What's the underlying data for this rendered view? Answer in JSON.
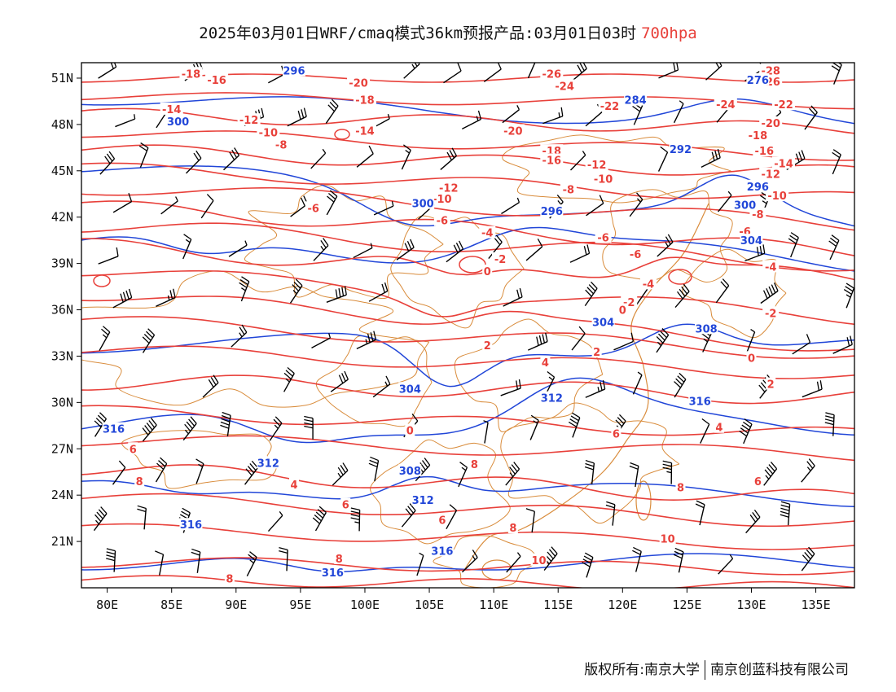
{
  "title": {
    "main": "2025年03月01日WRF/cmaq模式36km预报产品:03月01日03时",
    "level": "700hpa"
  },
  "footer": {
    "left": "版权所有:南京大学",
    "right": "南京创蓝科技有限公司"
  },
  "colors": {
    "temperature": "#e8403a",
    "height": "#2146d8",
    "boundary": "#d98c3c",
    "wind": "#000000"
  },
  "axes": {
    "lon_range": [
      78,
      138
    ],
    "lat_range": [
      18,
      52
    ],
    "lon_ticks": [
      {
        "v": 80,
        "label": "80E"
      },
      {
        "v": 85,
        "label": "85E"
      },
      {
        "v": 90,
        "label": "90E"
      },
      {
        "v": 95,
        "label": "95E"
      },
      {
        "v": 100,
        "label": "100E"
      },
      {
        "v": 105,
        "label": "105E"
      },
      {
        "v": 110,
        "label": "110E"
      },
      {
        "v": 115,
        "label": "115E"
      },
      {
        "v": 120,
        "label": "120E"
      },
      {
        "v": 125,
        "label": "125E"
      },
      {
        "v": 130,
        "label": "130E"
      },
      {
        "v": 135,
        "label": "135E"
      }
    ],
    "lat_ticks": [
      {
        "v": 51,
        "label": "51N"
      },
      {
        "v": 48,
        "label": "48N"
      },
      {
        "v": 45,
        "label": "45N"
      },
      {
        "v": 42,
        "label": "42N"
      },
      {
        "v": 39,
        "label": "39N"
      },
      {
        "v": 36,
        "label": "36N"
      },
      {
        "v": 33,
        "label": "33N"
      },
      {
        "v": 30,
        "label": "30N"
      },
      {
        "v": 27,
        "label": "27N"
      },
      {
        "v": 24,
        "label": "24N"
      },
      {
        "v": 21,
        "label": "21N"
      }
    ]
  },
  "temp_labels": [
    {
      "lon": 86.5,
      "lat": 51.3,
      "text": "-18"
    },
    {
      "lon": 88.5,
      "lat": 50.9,
      "text": "-16"
    },
    {
      "lon": 85.0,
      "lat": 49.0,
      "text": "-14"
    },
    {
      "lon": 91.0,
      "lat": 48.3,
      "text": "-12"
    },
    {
      "lon": 92.5,
      "lat": 47.5,
      "text": "-10"
    },
    {
      "lon": 93.5,
      "lat": 46.7,
      "text": "-8"
    },
    {
      "lon": 99.5,
      "lat": 50.7,
      "text": "-20"
    },
    {
      "lon": 100.0,
      "lat": 49.6,
      "text": "-18"
    },
    {
      "lon": 100.0,
      "lat": 47.6,
      "text": "-14"
    },
    {
      "lon": 114.5,
      "lat": 51.3,
      "text": "-26"
    },
    {
      "lon": 115.5,
      "lat": 50.5,
      "text": "-24"
    },
    {
      "lon": 119.0,
      "lat": 49.2,
      "text": "-22"
    },
    {
      "lon": 111.5,
      "lat": 47.6,
      "text": "-20"
    },
    {
      "lon": 114.5,
      "lat": 46.3,
      "text": "-18"
    },
    {
      "lon": 114.5,
      "lat": 45.7,
      "text": "-16"
    },
    {
      "lon": 118.0,
      "lat": 45.4,
      "text": "-12"
    },
    {
      "lon": 118.5,
      "lat": 44.5,
      "text": "-10"
    },
    {
      "lon": 115.8,
      "lat": 43.8,
      "text": "-8"
    },
    {
      "lon": 106.5,
      "lat": 43.9,
      "text": "-12"
    },
    {
      "lon": 106.0,
      "lat": 43.2,
      "text": "-10"
    },
    {
      "lon": 106.0,
      "lat": 41.8,
      "text": "-6"
    },
    {
      "lon": 96.0,
      "lat": 42.6,
      "text": "-6"
    },
    {
      "lon": 109.5,
      "lat": 41.0,
      "text": "-4"
    },
    {
      "lon": 118.5,
      "lat": 40.7,
      "text": "-6"
    },
    {
      "lon": 110.5,
      "lat": 39.3,
      "text": "-2"
    },
    {
      "lon": 109.5,
      "lat": 38.5,
      "text": "0"
    },
    {
      "lon": 121.0,
      "lat": 39.6,
      "text": "-6"
    },
    {
      "lon": 122.0,
      "lat": 37.7,
      "text": "-4"
    },
    {
      "lon": 120.5,
      "lat": 36.5,
      "text": "-2"
    },
    {
      "lon": 120.0,
      "lat": 36.0,
      "text": "0"
    },
    {
      "lon": 131.5,
      "lat": 51.5,
      "text": "-28"
    },
    {
      "lon": 131.5,
      "lat": 50.8,
      "text": "-26"
    },
    {
      "lon": 128.0,
      "lat": 49.3,
      "text": "-24"
    },
    {
      "lon": 132.5,
      "lat": 49.3,
      "text": "-22"
    },
    {
      "lon": 131.5,
      "lat": 48.1,
      "text": "-20"
    },
    {
      "lon": 130.5,
      "lat": 47.3,
      "text": "-18"
    },
    {
      "lon": 131.0,
      "lat": 46.3,
      "text": "-16"
    },
    {
      "lon": 132.5,
      "lat": 45.5,
      "text": "-14"
    },
    {
      "lon": 131.5,
      "lat": 44.8,
      "text": "-12"
    },
    {
      "lon": 132.0,
      "lat": 43.4,
      "text": "-10"
    },
    {
      "lon": 130.5,
      "lat": 42.2,
      "text": "-8"
    },
    {
      "lon": 129.5,
      "lat": 41.1,
      "text": "-6"
    },
    {
      "lon": 131.5,
      "lat": 38.8,
      "text": "-4"
    },
    {
      "lon": 131.5,
      "lat": 35.8,
      "text": "-2"
    },
    {
      "lon": 130.0,
      "lat": 32.9,
      "text": "0"
    },
    {
      "lon": 131.5,
      "lat": 31.2,
      "text": "2"
    },
    {
      "lon": 127.5,
      "lat": 28.4,
      "text": "4"
    },
    {
      "lon": 130.5,
      "lat": 24.9,
      "text": "6"
    },
    {
      "lon": 124.5,
      "lat": 24.5,
      "text": "8"
    },
    {
      "lon": 123.5,
      "lat": 21.2,
      "text": "10"
    },
    {
      "lon": 109.5,
      "lat": 33.7,
      "text": "2"
    },
    {
      "lon": 114.0,
      "lat": 32.6,
      "text": "4"
    },
    {
      "lon": 118.0,
      "lat": 33.3,
      "text": "2"
    },
    {
      "lon": 119.5,
      "lat": 28.0,
      "text": "6"
    },
    {
      "lon": 82.0,
      "lat": 27.0,
      "text": "6"
    },
    {
      "lon": 82.5,
      "lat": 24.9,
      "text": "8"
    },
    {
      "lon": 94.5,
      "lat": 24.7,
      "text": "4"
    },
    {
      "lon": 98.5,
      "lat": 23.4,
      "text": "6"
    },
    {
      "lon": 103.5,
      "lat": 28.2,
      "text": "0"
    },
    {
      "lon": 106.0,
      "lat": 22.4,
      "text": "6"
    },
    {
      "lon": 108.5,
      "lat": 26.0,
      "text": "8"
    },
    {
      "lon": 111.5,
      "lat": 21.9,
      "text": "8"
    },
    {
      "lon": 113.5,
      "lat": 19.8,
      "text": "10"
    },
    {
      "lon": 98.0,
      "lat": 19.9,
      "text": "8"
    },
    {
      "lon": 89.5,
      "lat": 18.6,
      "text": "8"
    }
  ],
  "height_labels": [
    {
      "lon": 94.5,
      "lat": 51.5,
      "text": "296"
    },
    {
      "lon": 85.5,
      "lat": 48.2,
      "text": "300"
    },
    {
      "lon": 121.0,
      "lat": 49.6,
      "text": "284"
    },
    {
      "lon": 130.5,
      "lat": 50.9,
      "text": "276"
    },
    {
      "lon": 124.5,
      "lat": 46.4,
      "text": "292"
    },
    {
      "lon": 130.5,
      "lat": 44.0,
      "text": "296"
    },
    {
      "lon": 129.5,
      "lat": 42.8,
      "text": "300"
    },
    {
      "lon": 114.5,
      "lat": 42.4,
      "text": "296"
    },
    {
      "lon": 104.5,
      "lat": 42.9,
      "text": "300"
    },
    {
      "lon": 130.0,
      "lat": 40.5,
      "text": "304"
    },
    {
      "lon": 118.5,
      "lat": 35.2,
      "text": "304"
    },
    {
      "lon": 126.5,
      "lat": 34.8,
      "text": "308"
    },
    {
      "lon": 103.5,
      "lat": 30.9,
      "text": "304"
    },
    {
      "lon": 114.5,
      "lat": 30.3,
      "text": "312"
    },
    {
      "lon": 126.0,
      "lat": 30.1,
      "text": "316"
    },
    {
      "lon": 80.5,
      "lat": 28.3,
      "text": "316"
    },
    {
      "lon": 92.5,
      "lat": 26.1,
      "text": "312"
    },
    {
      "lon": 103.5,
      "lat": 25.6,
      "text": "308"
    },
    {
      "lon": 104.5,
      "lat": 23.7,
      "text": "312"
    },
    {
      "lon": 86.5,
      "lat": 22.1,
      "text": "316"
    },
    {
      "lon": 106.0,
      "lat": 20.4,
      "text": "316"
    },
    {
      "lon": 97.5,
      "lat": 19.0,
      "text": "316"
    }
  ]
}
